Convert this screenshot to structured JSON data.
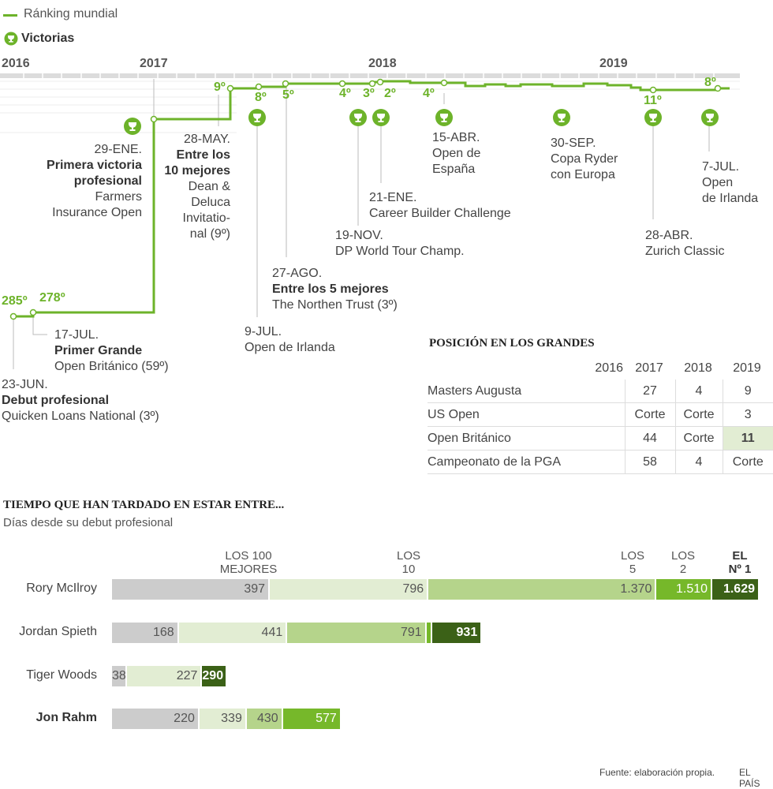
{
  "legend": {
    "ranking_label": "Ránking mundial",
    "victorias_label": "Victorias",
    "line_color": "#6db32a"
  },
  "years": [
    "2016",
    "2017",
    "2018",
    "2019"
  ],
  "ranking_points": [
    {
      "label": "285º"
    },
    {
      "label": "278º"
    },
    {
      "label": "9º"
    },
    {
      "label": "8º"
    },
    {
      "label": "5º"
    },
    {
      "label": "4º"
    },
    {
      "label": "3º"
    },
    {
      "label": "2º"
    },
    {
      "label": "4º"
    },
    {
      "label": "11º"
    },
    {
      "label": "8º"
    }
  ],
  "events": [
    {
      "date": "23-JUN.",
      "title": "Debut profesional",
      "desc": "Quicken Loans National (3º)"
    },
    {
      "date": "17-JUL.",
      "title": "Primer Grande",
      "desc": "Open Británico (59º)"
    },
    {
      "date": "29-ENE.",
      "title": "Primera victoria profesional",
      "desc1": "Farmers",
      "desc2": "Insurance Open"
    },
    {
      "date": "28-MAY.",
      "title1": "Entre los",
      "title2": "10 mejores",
      "desc1": "Dean &",
      "desc2": "Deluca",
      "desc3": "Invitatio-",
      "desc4": "nal (9º)"
    },
    {
      "date": "9-JUL.",
      "desc": "Open de Irlanda"
    },
    {
      "date": "27-AGO.",
      "title": "Entre los 5 mejores",
      "desc": "The Northen Trust (3º)"
    },
    {
      "date": "19-NOV.",
      "desc": "DP World Tour Champ."
    },
    {
      "date": "21-ENE.",
      "desc": "Career Builder Challenge"
    },
    {
      "date": "15-ABR.",
      "desc1": "Open de",
      "desc2": "España"
    },
    {
      "date": "30-SEP.",
      "desc1": "Copa Ryder",
      "desc2": "con Europa"
    },
    {
      "date": "28-ABR.",
      "desc": "Zurich Classic"
    },
    {
      "date": "7-JUL.",
      "desc1": "Open",
      "desc2": "de Irlanda"
    }
  ],
  "grandes": {
    "title": "POSICIÓN EN LOS GRANDES",
    "years": [
      "2016",
      "2017",
      "2018",
      "2019"
    ],
    "rows": [
      {
        "name": "Masters Augusta",
        "values": [
          "",
          "27",
          "4",
          "9"
        ]
      },
      {
        "name": "US Open",
        "values": [
          "",
          "Corte",
          "Corte",
          "3"
        ]
      },
      {
        "name": "Open Británico",
        "values": [
          "",
          "44",
          "Corte",
          "11"
        ]
      },
      {
        "name": "Campeonato de la PGA",
        "values": [
          "",
          "58",
          "4",
          "Corte"
        ]
      }
    ],
    "highlight_color": "#e2edd3"
  },
  "chart_data": {
    "type": "bar",
    "title": "TIEMPO QUE HAN TARDADO EN ESTAR ENTRE...",
    "subtitle": "Días desde su debut profesional",
    "stacked": true,
    "milestone_labels": [
      {
        "l1": "LOS 100",
        "l2": "MEJORES"
      },
      {
        "l1": "LOS",
        "l2": "10"
      },
      {
        "l1": "LOS",
        "l2": "5"
      },
      {
        "l1": "LOS",
        "l2": "2"
      },
      {
        "l1": "EL",
        "l2": "Nº 1"
      }
    ],
    "colors": [
      "#cccccc",
      "#e2edd3",
      "#b5d48b",
      "#76b82a",
      "#3b6117"
    ],
    "players": [
      {
        "name": "Rory McIlroy",
        "values": [
          397,
          796,
          1370,
          1510,
          1629
        ],
        "labels": [
          "397",
          "796",
          "1.370",
          "1.510",
          "1.629"
        ]
      },
      {
        "name": "Jordan Spieth",
        "values": [
          168,
          441,
          791,
          806,
          931
        ],
        "labels": [
          "168",
          "441",
          "791",
          "",
          "931"
        ]
      },
      {
        "name": "Tiger Woods",
        "values": [
          38,
          227,
          null,
          null,
          290
        ],
        "labels": [
          "38",
          "227",
          "",
          "",
          "290"
        ]
      },
      {
        "name": "Jon Rahm",
        "values": [
          220,
          339,
          430,
          577,
          null
        ],
        "labels": [
          "220",
          "339",
          "430",
          "577",
          ""
        ]
      }
    ]
  },
  "footer": {
    "source": "Fuente: elaboración propia.",
    "brand": "EL PAÍS"
  }
}
